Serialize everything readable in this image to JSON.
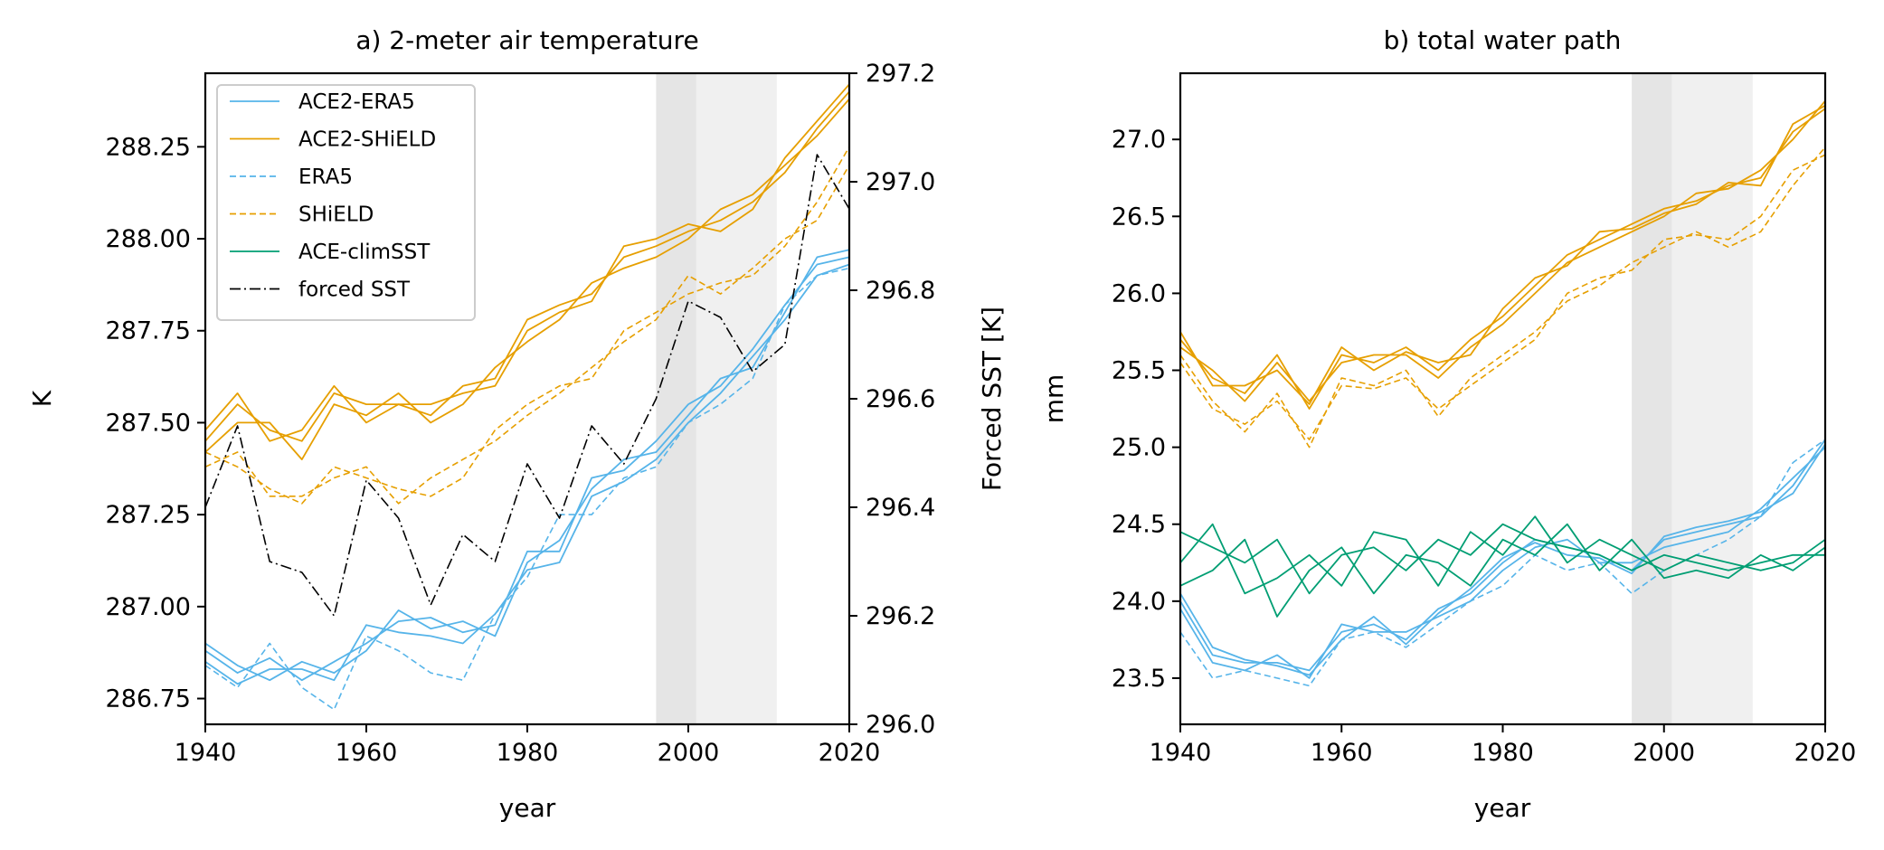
{
  "colors": {
    "ace2_era5": "#56b4e9",
    "ace2_shield": "#e69f00",
    "era5": "#56b4e9",
    "shield": "#e69f00",
    "ace_climsst": "#009e73",
    "forced_sst": "#000000",
    "band_dark": "#e5e5e5",
    "band_light": "#f0f0f0"
  },
  "chart_data": [
    {
      "type": "line",
      "title": "a) 2-meter air temperature",
      "xlabel": "year",
      "ylabel": "K",
      "ylabel_right": "Forced SST [K]",
      "xlim": [
        1940,
        2020
      ],
      "ylim": [
        286.68,
        288.45
      ],
      "ylim_right": [
        296.0,
        297.2
      ],
      "xticks": [
        1940,
        1960,
        1980,
        2000,
        2020
      ],
      "yticks": [
        286.75,
        287.0,
        287.25,
        287.5,
        287.75,
        288.0,
        288.25
      ],
      "ytick_labels": [
        "286.75",
        "287.00",
        "287.25",
        "287.50",
        "287.75",
        "288.00",
        "288.25"
      ],
      "yticks_right": [
        296.0,
        296.2,
        296.4,
        296.6,
        296.8,
        297.0,
        297.2
      ],
      "ytick_labels_right": [
        "296.0",
        "296.2",
        "296.4",
        "296.6",
        "296.8",
        "297.0",
        "297.2"
      ],
      "shaded_periods": [
        {
          "x": [
            1996,
            2001
          ],
          "shade": "dark"
        },
        {
          "x": [
            2001,
            2011
          ],
          "shade": "light"
        }
      ],
      "legend": {
        "position": "upper-left",
        "entries": [
          {
            "label": "ACE2-ERA5",
            "color_key": "ace2_era5",
            "style": "solid"
          },
          {
            "label": "ACE2-SHiELD",
            "color_key": "ace2_shield",
            "style": "solid"
          },
          {
            "label": "ERA5",
            "color_key": "era5",
            "style": "dashed"
          },
          {
            "label": "SHiELD",
            "color_key": "shield",
            "style": "dashed"
          },
          {
            "label": "ACE-climSST",
            "color_key": "ace_climsst",
            "style": "solid"
          },
          {
            "label": "forced SST",
            "color_key": "forced_sst",
            "style": "dashdot"
          }
        ]
      },
      "series": [
        {
          "group": "ACE2-ERA5",
          "style": "solid",
          "x_start": 1940,
          "x_step": 4,
          "values": [
            286.88,
            286.82,
            286.86,
            286.8,
            286.85,
            286.9,
            286.96,
            286.97,
            286.93,
            286.95,
            287.15,
            287.15,
            287.35,
            287.37,
            287.45,
            287.55,
            287.6,
            287.7,
            287.82,
            287.93,
            287.95
          ]
        },
        {
          "group": "ACE2-ERA5",
          "style": "solid",
          "x_start": 1940,
          "x_step": 4,
          "values": [
            286.85,
            286.79,
            286.83,
            286.83,
            286.8,
            286.95,
            286.93,
            286.92,
            286.9,
            286.98,
            287.1,
            287.12,
            287.3,
            287.34,
            287.4,
            287.5,
            287.58,
            287.68,
            287.78,
            287.9,
            287.93
          ]
        },
        {
          "group": "ACE2-ERA5",
          "style": "solid",
          "x_start": 1940,
          "x_step": 4,
          "values": [
            286.9,
            286.84,
            286.8,
            286.85,
            286.82,
            286.88,
            286.99,
            286.94,
            286.96,
            286.92,
            287.12,
            287.18,
            287.32,
            287.4,
            287.42,
            287.52,
            287.62,
            287.65,
            287.8,
            287.95,
            287.97
          ]
        },
        {
          "group": "ERA5",
          "style": "dashed",
          "x_start": 1940,
          "x_step": 4,
          "values": [
            286.84,
            286.78,
            286.9,
            286.78,
            286.72,
            286.92,
            286.88,
            286.82,
            286.8,
            286.98,
            287.08,
            287.25,
            287.25,
            287.35,
            287.38,
            287.5,
            287.55,
            287.62,
            287.82,
            287.9,
            287.92
          ]
        },
        {
          "group": "ACE2-SHiELD",
          "style": "solid",
          "x_start": 1940,
          "x_step": 4,
          "values": [
            287.45,
            287.55,
            287.48,
            287.45,
            287.58,
            287.55,
            287.55,
            287.52,
            287.6,
            287.62,
            287.78,
            287.82,
            287.85,
            287.95,
            287.98,
            288.02,
            288.05,
            288.1,
            288.18,
            288.3,
            288.4
          ]
        },
        {
          "group": "ACE2-SHiELD",
          "style": "solid",
          "x_start": 1940,
          "x_step": 4,
          "values": [
            287.42,
            287.5,
            287.5,
            287.4,
            287.55,
            287.52,
            287.58,
            287.5,
            287.55,
            287.65,
            287.72,
            287.78,
            287.88,
            287.92,
            287.95,
            288.0,
            288.08,
            288.12,
            288.2,
            288.28,
            288.38
          ]
        },
        {
          "group": "ACE2-SHiELD",
          "style": "solid",
          "x_start": 1940,
          "x_step": 4,
          "values": [
            287.48,
            287.58,
            287.45,
            287.48,
            287.6,
            287.5,
            287.55,
            287.55,
            287.58,
            287.6,
            287.75,
            287.8,
            287.83,
            287.98,
            288.0,
            288.04,
            288.02,
            288.08,
            288.22,
            288.32,
            288.42
          ]
        },
        {
          "group": "SHiELD",
          "style": "dashed",
          "x_start": 1940,
          "x_step": 4,
          "values": [
            287.42,
            287.38,
            287.32,
            287.28,
            287.38,
            287.35,
            287.32,
            287.3,
            287.35,
            287.48,
            287.55,
            287.6,
            287.62,
            287.75,
            287.8,
            287.85,
            287.88,
            287.9,
            287.98,
            288.1,
            288.25
          ]
        },
        {
          "group": "SHiELD",
          "style": "dashed",
          "x_start": 1940,
          "x_step": 4,
          "values": [
            287.38,
            287.42,
            287.3,
            287.3,
            287.35,
            287.38,
            287.28,
            287.35,
            287.4,
            287.45,
            287.52,
            287.58,
            287.65,
            287.72,
            287.78,
            287.9,
            287.85,
            287.92,
            288.0,
            288.05,
            288.2
          ]
        },
        {
          "group": "forced SST",
          "style": "dashdot",
          "axis": "right",
          "x_start": 1940,
          "x_step": 4,
          "values": [
            296.4,
            296.55,
            296.3,
            296.28,
            296.2,
            296.45,
            296.38,
            296.22,
            296.35,
            296.3,
            296.48,
            296.38,
            296.55,
            296.48,
            296.6,
            296.78,
            296.75,
            296.65,
            296.7,
            297.05,
            296.95
          ]
        }
      ]
    },
    {
      "type": "line",
      "title": "b) total water path",
      "xlabel": "year",
      "ylabel": "mm",
      "xlim": [
        1940,
        2020
      ],
      "ylim": [
        23.2,
        27.43
      ],
      "xticks": [
        1940,
        1960,
        1980,
        2000,
        2020
      ],
      "yticks": [
        23.5,
        24.0,
        24.5,
        25.0,
        25.5,
        26.0,
        26.5,
        27.0
      ],
      "ytick_labels": [
        "23.5",
        "24.0",
        "24.5",
        "25.0",
        "25.5",
        "26.0",
        "26.5",
        "27.0"
      ],
      "shaded_periods": [
        {
          "x": [
            1996,
            2001
          ],
          "shade": "dark"
        },
        {
          "x": [
            2001,
            2011
          ],
          "shade": "light"
        }
      ],
      "series": [
        {
          "group": "ACE2-SHiELD",
          "style": "solid",
          "x_start": 1940,
          "x_step": 4,
          "values": [
            25.7,
            25.45,
            25.35,
            25.6,
            25.25,
            25.6,
            25.55,
            25.65,
            25.5,
            25.7,
            25.85,
            26.05,
            26.25,
            26.35,
            26.45,
            26.55,
            26.6,
            26.7,
            26.75,
            27.05,
            27.2
          ]
        },
        {
          "group": "ACE2-SHiELD",
          "style": "solid",
          "x_start": 1940,
          "x_step": 4,
          "values": [
            25.65,
            25.5,
            25.3,
            25.55,
            25.3,
            25.55,
            25.6,
            25.6,
            25.45,
            25.65,
            25.8,
            26.0,
            26.2,
            26.3,
            26.4,
            26.5,
            26.65,
            26.68,
            26.8,
            27.0,
            27.25
          ]
        },
        {
          "group": "ACE2-SHiELD",
          "style": "solid",
          "x_start": 1940,
          "x_step": 4,
          "values": [
            25.75,
            25.4,
            25.4,
            25.5,
            25.28,
            25.65,
            25.5,
            25.62,
            25.55,
            25.6,
            25.9,
            26.1,
            26.18,
            26.4,
            26.42,
            26.52,
            26.58,
            26.72,
            26.7,
            27.1,
            27.22
          ]
        },
        {
          "group": "SHiELD",
          "style": "dashed",
          "x_start": 1940,
          "x_step": 4,
          "values": [
            25.6,
            25.3,
            25.1,
            25.35,
            25.0,
            25.45,
            25.4,
            25.5,
            25.2,
            25.45,
            25.6,
            25.75,
            25.95,
            26.05,
            26.2,
            26.3,
            26.4,
            26.3,
            26.4,
            26.7,
            26.95
          ]
        },
        {
          "group": "SHiELD",
          "style": "dashed",
          "x_start": 1940,
          "x_step": 4,
          "values": [
            25.55,
            25.25,
            25.15,
            25.3,
            25.05,
            25.4,
            25.38,
            25.45,
            25.25,
            25.4,
            25.55,
            25.7,
            26.0,
            26.1,
            26.15,
            26.35,
            26.38,
            26.35,
            26.5,
            26.8,
            26.9
          ]
        },
        {
          "group": "ACE2-ERA5",
          "style": "solid",
          "x_start": 1940,
          "x_step": 4,
          "values": [
            24.0,
            23.65,
            23.6,
            23.6,
            23.55,
            23.8,
            23.85,
            23.75,
            23.95,
            24.05,
            24.25,
            24.4,
            24.35,
            24.3,
            24.2,
            24.4,
            24.45,
            24.5,
            24.55,
            24.75,
            25.05
          ]
        },
        {
          "group": "ACE2-ERA5",
          "style": "solid",
          "x_start": 1940,
          "x_step": 4,
          "values": [
            23.95,
            23.6,
            23.55,
            23.65,
            23.5,
            23.85,
            23.8,
            23.8,
            23.9,
            24.0,
            24.2,
            24.35,
            24.4,
            24.25,
            24.25,
            24.35,
            24.4,
            24.45,
            24.6,
            24.8,
            25.0
          ]
        },
        {
          "group": "ACE2-ERA5",
          "style": "solid",
          "x_start": 1940,
          "x_step": 4,
          "values": [
            24.05,
            23.7,
            23.62,
            23.58,
            23.52,
            23.75,
            23.9,
            23.72,
            23.92,
            24.08,
            24.28,
            24.38,
            24.3,
            24.28,
            24.18,
            24.42,
            24.48,
            24.52,
            24.58,
            24.7,
            25.02
          ]
        },
        {
          "group": "ERA5",
          "style": "dashed",
          "x_start": 1940,
          "x_step": 4,
          "values": [
            23.8,
            23.5,
            23.55,
            23.5,
            23.45,
            23.75,
            23.8,
            23.7,
            23.85,
            24.0,
            24.1,
            24.3,
            24.2,
            24.25,
            24.05,
            24.2,
            24.3,
            24.4,
            24.55,
            24.9,
            25.05
          ]
        },
        {
          "group": "ACE-climSST",
          "style": "solid",
          "x_start": 1940,
          "x_step": 4,
          "values": [
            24.45,
            24.35,
            24.25,
            24.4,
            24.05,
            24.3,
            24.35,
            24.2,
            24.4,
            24.3,
            24.5,
            24.4,
            24.35,
            24.3,
            24.2,
            24.3,
            24.25,
            24.2,
            24.25,
            24.3,
            24.3
          ]
        },
        {
          "group": "ACE-climSST",
          "style": "solid",
          "x_start": 1940,
          "x_step": 4,
          "values": [
            24.25,
            24.5,
            24.05,
            24.15,
            24.3,
            24.1,
            24.45,
            24.4,
            24.1,
            24.45,
            24.3,
            24.55,
            24.25,
            24.4,
            24.3,
            24.2,
            24.3,
            24.25,
            24.2,
            24.25,
            24.4
          ]
        },
        {
          "group": "ACE-climSST",
          "style": "solid",
          "x_start": 1940,
          "x_step": 4,
          "values": [
            24.1,
            24.2,
            24.4,
            23.9,
            24.2,
            24.35,
            24.05,
            24.3,
            24.25,
            24.1,
            24.4,
            24.3,
            24.5,
            24.2,
            24.4,
            24.15,
            24.2,
            24.15,
            24.3,
            24.2,
            24.35
          ]
        }
      ]
    }
  ]
}
